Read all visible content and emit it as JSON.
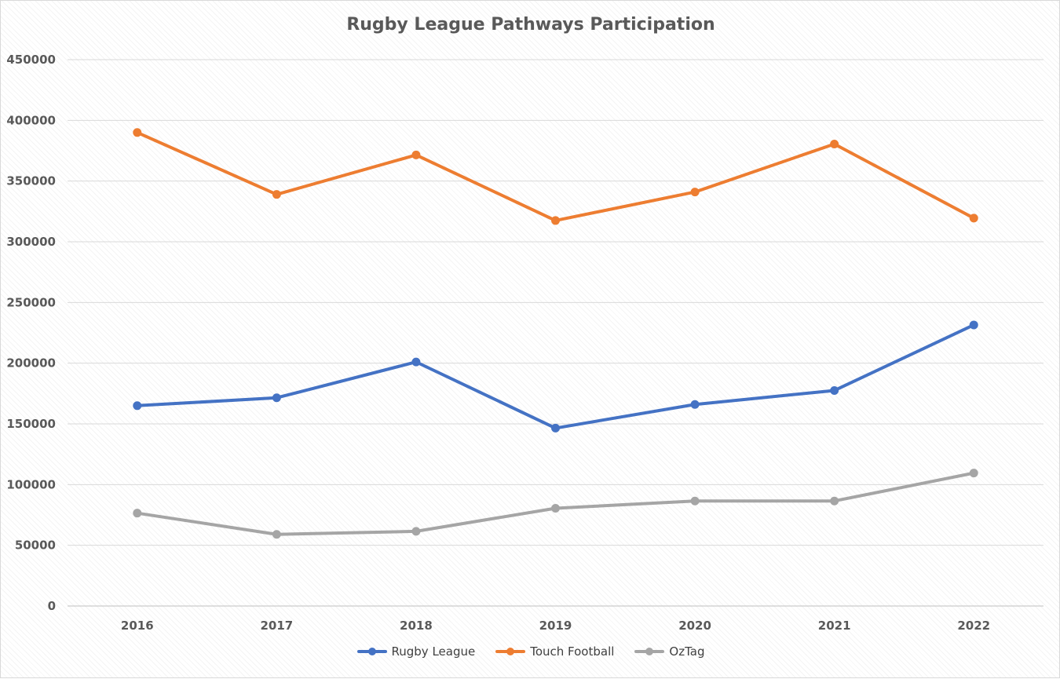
{
  "chart_data": {
    "type": "line",
    "title": "Rugby League Pathways Participation",
    "xlabel": "",
    "ylabel": "",
    "categories": [
      "2016",
      "2017",
      "2018",
      "2019",
      "2020",
      "2021",
      "2022"
    ],
    "ylim": [
      0,
      450000
    ],
    "yticks": [
      "0",
      "50000",
      "100000",
      "150000",
      "200000",
      "250000",
      "300000",
      "350000",
      "400000",
      "450000"
    ],
    "grid": true,
    "legend_position": "bottom",
    "series": [
      {
        "name": "Rugby League",
        "color": "#4472C4",
        "values": [
          165000,
          171500,
          201000,
          146500,
          166000,
          177500,
          231500
        ]
      },
      {
        "name": "Touch Football",
        "color": "#ED7D31",
        "values": [
          390000,
          339000,
          371500,
          317500,
          341000,
          380500,
          319500
        ]
      },
      {
        "name": "OzTag",
        "color": "#A5A5A5",
        "values": [
          76500,
          59000,
          61500,
          80500,
          86500,
          86500,
          109500
        ]
      }
    ]
  }
}
